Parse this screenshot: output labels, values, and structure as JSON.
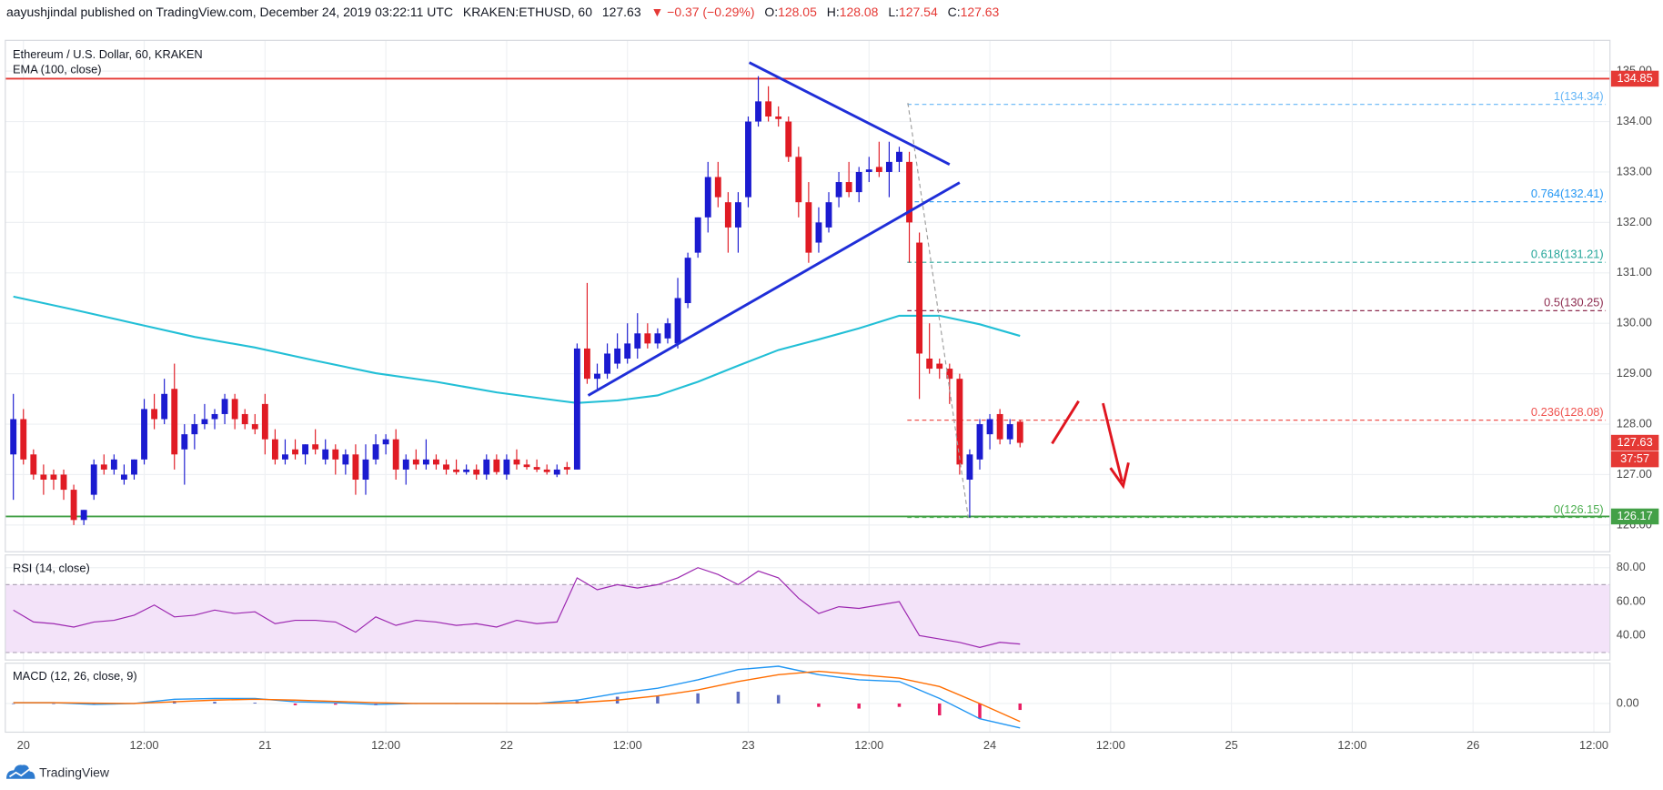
{
  "header": {
    "author": "aayushjindal published on TradingView.com, December 24, 2019 03:22:11 UTC",
    "symbol": "KRAKEN:ETHUSD, 60",
    "last": 127.63,
    "change": "▼ −0.37 (−0.29%)",
    "ohlc": [
      {
        "label": "O:",
        "value": 128.05
      },
      {
        "label": "H:",
        "value": 128.08
      },
      {
        "label": "L:",
        "value": 127.54
      },
      {
        "label": "C:",
        "value": 127.63
      }
    ]
  },
  "footer": {
    "brand": "TradingView"
  },
  "chart_data": [
    {
      "type": "candlestick",
      "title": "Ethereum / U.S. Dollar, 60, KRAKEN",
      "x": [
        -1,
        0,
        1,
        2,
        3,
        4,
        5,
        6,
        7,
        8,
        9,
        10,
        11,
        12,
        13,
        14,
        15,
        16,
        17,
        18,
        19,
        20,
        21,
        22,
        23,
        24,
        25,
        26,
        27,
        28,
        29,
        30,
        31,
        32,
        33,
        34,
        35,
        36,
        37,
        38,
        39,
        40,
        41,
        42,
        43,
        44,
        45,
        46,
        47,
        48,
        49,
        50,
        51,
        52,
        53,
        54,
        55,
        56,
        57,
        58,
        59,
        60,
        61,
        62,
        63,
        64,
        65,
        66,
        67,
        68,
        69,
        70,
        71,
        72,
        73,
        74,
        75,
        76,
        77,
        78,
        79,
        80,
        81,
        82,
        83,
        84,
        85,
        86,
        87,
        88,
        89,
        90,
        91,
        92,
        93,
        94,
        95,
        96,
        97,
        98,
        99
      ],
      "open": [
        127.4,
        128.1,
        127.4,
        127.0,
        127.0,
        127.0,
        126.7,
        126.1,
        126.6,
        127.2,
        127.1,
        126.9,
        127.0,
        127.3,
        128.3,
        128.1,
        128.7,
        127.5,
        127.8,
        128.0,
        128.1,
        128.2,
        128.5,
        128.2,
        128.0,
        128.4,
        127.7,
        127.3,
        127.5,
        127.4,
        127.6,
        127.3,
        127.5,
        127.2,
        127.4,
        126.9,
        127.3,
        127.6,
        127.7,
        127.1,
        127.3,
        127.2,
        127.3,
        127.2,
        127.1,
        127.05,
        127.1,
        127.0,
        127.3,
        127.0,
        127.3,
        127.2,
        127.15,
        127.1,
        127.0,
        127.15,
        127.1,
        129.5,
        128.9,
        129.0,
        129.2,
        129.3,
        129.5,
        129.8,
        129.6,
        129.7,
        129.6,
        130.4,
        131.4,
        132.1,
        132.9,
        132.4,
        131.9,
        132.5,
        134.0,
        134.4,
        134.1,
        134.0,
        133.3,
        132.4,
        131.6,
        131.9,
        132.5,
        132.8,
        132.6,
        133.0,
        133.1,
        133.0,
        133.2,
        133.2,
        131.6,
        129.3,
        129.2,
        129.1,
        128.9,
        126.9,
        127.3,
        127.8,
        128.2,
        127.7,
        128.05
      ],
      "high": [
        128.6,
        128.3,
        127.5,
        127.2,
        127.1,
        127.1,
        126.8,
        126.3,
        127.3,
        127.4,
        127.4,
        127.2,
        127.3,
        128.5,
        128.6,
        128.9,
        129.2,
        128.0,
        128.2,
        128.4,
        128.3,
        128.6,
        128.6,
        128.3,
        128.2,
        128.6,
        127.9,
        127.7,
        127.7,
        127.6,
        127.9,
        127.7,
        127.6,
        127.5,
        127.6,
        127.6,
        127.8,
        127.8,
        127.9,
        127.4,
        127.5,
        127.7,
        127.4,
        127.3,
        127.3,
        127.2,
        127.2,
        127.4,
        127.4,
        127.4,
        127.5,
        127.3,
        127.3,
        127.2,
        127.2,
        127.25,
        129.6,
        130.8,
        129.2,
        129.6,
        129.8,
        130.0,
        130.2,
        130.0,
        129.9,
        130.1,
        130.9,
        131.4,
        132.1,
        133.2,
        133.2,
        132.6,
        132.6,
        134.1,
        134.9,
        134.7,
        134.3,
        134.1,
        133.5,
        132.8,
        132.3,
        132.6,
        133.0,
        133.2,
        133.1,
        133.3,
        133.6,
        133.6,
        133.5,
        133.4,
        131.8,
        130.0,
        129.3,
        129.2,
        129.0,
        127.5,
        128.1,
        128.2,
        128.3,
        128.1,
        128.08
      ],
      "low": [
        126.5,
        127.2,
        126.9,
        126.6,
        126.7,
        126.5,
        126.0,
        126.0,
        126.5,
        127.0,
        127.0,
        126.8,
        126.9,
        127.2,
        127.9,
        128.0,
        127.1,
        126.8,
        127.5,
        127.9,
        127.9,
        128.0,
        127.9,
        127.9,
        127.8,
        127.4,
        127.2,
        127.2,
        127.3,
        127.2,
        127.4,
        127.2,
        127.0,
        127.0,
        126.6,
        126.6,
        127.2,
        127.4,
        126.9,
        126.8,
        127.1,
        127.1,
        127.1,
        127.0,
        127.0,
        127.0,
        126.9,
        126.9,
        127.0,
        126.9,
        127.1,
        127.1,
        127.05,
        127.0,
        126.95,
        127.0,
        127.1,
        128.8,
        128.7,
        128.9,
        129.1,
        129.2,
        129.3,
        129.5,
        129.5,
        129.6,
        129.5,
        130.3,
        131.3,
        131.8,
        132.3,
        131.4,
        131.4,
        132.3,
        133.9,
        134.0,
        133.9,
        133.2,
        132.1,
        131.2,
        131.4,
        131.8,
        132.3,
        132.5,
        132.4,
        132.8,
        132.9,
        132.5,
        133.0,
        131.2,
        128.5,
        129.0,
        128.9,
        128.4,
        127.0,
        126.15,
        127.1,
        127.5,
        127.6,
        127.6,
        127.54
      ],
      "close": [
        128.1,
        127.3,
        127.0,
        126.9,
        126.9,
        126.7,
        126.1,
        126.3,
        127.2,
        127.1,
        127.3,
        127.0,
        127.3,
        128.3,
        128.1,
        128.6,
        127.4,
        127.8,
        128.0,
        128.1,
        128.2,
        128.5,
        128.1,
        128.0,
        127.9,
        127.7,
        127.3,
        127.4,
        127.4,
        127.6,
        127.5,
        127.5,
        127.3,
        127.4,
        126.9,
        127.3,
        127.6,
        127.7,
        127.1,
        127.3,
        127.2,
        127.3,
        127.2,
        127.1,
        127.05,
        127.1,
        127.0,
        127.3,
        127.05,
        127.3,
        127.2,
        127.15,
        127.1,
        127.05,
        127.1,
        127.1,
        129.5,
        128.9,
        129.0,
        129.4,
        129.5,
        129.6,
        129.8,
        129.6,
        129.8,
        130.0,
        130.5,
        131.3,
        132.1,
        132.9,
        132.5,
        131.9,
        132.4,
        134.0,
        134.4,
        134.1,
        134.05,
        133.3,
        132.4,
        131.4,
        132.0,
        132.4,
        132.8,
        132.6,
        133.0,
        133.05,
        133.0,
        133.2,
        133.4,
        132.0,
        129.4,
        129.1,
        129.1,
        128.9,
        127.2,
        127.4,
        128.0,
        128.1,
        127.7,
        128.0,
        127.63
      ],
      "up_color": "#1b1bd0",
      "down_color": "#e01b24",
      "xlim": [
        -1.8,
        157.6
      ],
      "xticks": [
        {
          "value": 0,
          "label": "20"
        },
        {
          "value": 12,
          "label": "12:00"
        },
        {
          "value": 24,
          "label": "21"
        },
        {
          "value": 36,
          "label": "12:00"
        },
        {
          "value": 48,
          "label": "22"
        },
        {
          "value": 60,
          "label": "12:00"
        },
        {
          "value": 72,
          "label": "23"
        },
        {
          "value": 84,
          "label": "12:00"
        },
        {
          "value": 96,
          "label": "24"
        },
        {
          "value": 108,
          "label": "12:00"
        },
        {
          "value": 120,
          "label": "25"
        },
        {
          "value": 132,
          "label": "12:00"
        },
        {
          "value": 144,
          "label": "26"
        },
        {
          "value": 156,
          "label": "12:00"
        }
      ],
      "ylim": [
        125.47,
        135.61
      ],
      "yticks": [
        {
          "value": 126,
          "label": "126.00"
        },
        {
          "value": 127,
          "label": "127.00"
        },
        {
          "value": 128,
          "label": "128.00"
        },
        {
          "value": 129,
          "label": "129.00"
        },
        {
          "value": 130,
          "label": "130.00"
        },
        {
          "value": 131,
          "label": "131.00"
        },
        {
          "value": 132,
          "label": "132.00"
        },
        {
          "value": 133,
          "label": "133.00"
        },
        {
          "value": 134,
          "label": "134.00"
        },
        {
          "value": 135,
          "label": "135.00"
        }
      ],
      "grid": true,
      "overlays": [
        {
          "type": "line",
          "name": "EMA (100, close)",
          "color": "#22bfd6",
          "x": [
            -1,
            5,
            11,
            17,
            23,
            29,
            35,
            41,
            47,
            53,
            55,
            59,
            63,
            67,
            71,
            75,
            79,
            83,
            87,
            91,
            95,
            99
          ],
          "values": [
            130.53,
            130.27,
            130.0,
            129.73,
            129.52,
            129.26,
            129.01,
            128.84,
            128.63,
            128.47,
            128.42,
            128.47,
            128.57,
            128.84,
            129.16,
            129.47,
            129.68,
            129.9,
            130.15,
            130.15,
            129.98,
            129.75
          ]
        }
      ],
      "trendlines": [
        {
          "color": "#1f2ed8",
          "x": [
            72.1,
            92.0
          ],
          "values": [
            135.17,
            133.15
          ]
        },
        {
          "color": "#1f2ed8",
          "x": [
            56.1,
            93.0
          ],
          "values": [
            128.57,
            132.79
          ]
        }
      ],
      "hlines": [
        {
          "price": 134.85,
          "color": "#e53935"
        },
        {
          "price": 126.17,
          "color": "#43a047"
        }
      ],
      "fib": {
        "x": 87.8,
        "levels": [
          {
            "price": 134.34,
            "label": "1(134.34)",
            "color": "#64b5f6"
          },
          {
            "price": 132.41,
            "label": "0.764(132.41)",
            "color": "#2196f3"
          },
          {
            "price": 131.21,
            "label": "0.618(131.21)",
            "color": "#26a69a"
          },
          {
            "price": 130.25,
            "label": "0.5(130.25)",
            "color": "#8d2b4f"
          },
          {
            "price": 128.08,
            "label": "0.236(128.08)",
            "color": "#ef5350"
          },
          {
            "price": 126.15,
            "label": "0(126.15)",
            "color": "#4caf50"
          }
        ]
      },
      "last_price": 127.63,
      "last_color": "#e53935",
      "countdown": "37:57"
    },
    {
      "type": "line",
      "title": "RSI (14, close)",
      "color": "#9c27b0",
      "x": [
        -1,
        1,
        3,
        5,
        7,
        9,
        11,
        13,
        15,
        17,
        19,
        21,
        23,
        25,
        27,
        29,
        31,
        33,
        35,
        37,
        39,
        41,
        43,
        45,
        47,
        49,
        51,
        53,
        55,
        57,
        59,
        61,
        63,
        65,
        67,
        69,
        71,
        73,
        75,
        77,
        79,
        81,
        83,
        85,
        87,
        89,
        91,
        93,
        95,
        97,
        99
      ],
      "values": [
        55,
        48,
        47,
        45,
        48,
        49,
        52,
        58,
        51,
        52,
        55,
        53,
        54,
        47,
        49,
        49,
        48,
        42,
        51,
        46,
        49,
        48,
        46,
        47,
        45,
        49,
        47,
        48,
        74,
        67,
        70,
        68,
        70,
        74,
        80,
        76,
        70,
        78,
        74,
        62,
        53,
        57,
        56,
        58,
        60,
        40,
        38,
        36,
        33,
        36,
        35
      ],
      "band": [
        30,
        70
      ],
      "band_color": "#f3e3f9",
      "ylim": [
        25.6,
        87.5
      ],
      "yticks": [
        {
          "value": 40,
          "label": "40.00"
        },
        {
          "value": 60,
          "label": "60.00"
        },
        {
          "value": 80,
          "label": "80.00"
        }
      ]
    },
    {
      "type": "macd",
      "title": "MACD (12, 26, close, 9)",
      "x": [
        -1,
        3,
        7,
        11,
        15,
        19,
        23,
        27,
        31,
        35,
        39,
        43,
        47,
        51,
        55,
        59,
        63,
        67,
        71,
        75,
        79,
        83,
        87,
        91,
        95,
        99
      ],
      "series": [
        {
          "color": "#2196f3",
          "values": [
            0.05,
            0.05,
            -0.05,
            0.0,
            0.25,
            0.3,
            0.3,
            0.1,
            0.05,
            -0.05,
            0.0,
            0.0,
            0.0,
            0.0,
            0.2,
            0.6,
            0.9,
            1.4,
            2.0,
            2.2,
            1.7,
            1.4,
            1.3,
            0.3,
            -0.9,
            -1.44
          ]
        },
        {
          "color": "#ff6d00",
          "values": [
            0.05,
            0.05,
            0.02,
            0.0,
            0.1,
            0.2,
            0.25,
            0.2,
            0.12,
            0.05,
            0.0,
            0.0,
            0.0,
            0.0,
            0.05,
            0.2,
            0.45,
            0.8,
            1.3,
            1.7,
            1.9,
            1.7,
            1.5,
            1.0,
            0.0,
            -1.06
          ]
        }
      ],
      "histogram": {
        "values": [
          0,
          0,
          -0.07,
          0,
          0.15,
          0.1,
          0.05,
          -0.1,
          -0.07,
          -0.1,
          0,
          0,
          0,
          0,
          0.15,
          0.4,
          0.45,
          0.6,
          0.7,
          0.5,
          -0.2,
          -0.3,
          -0.2,
          -0.7,
          -0.9,
          -0.38
        ],
        "positive_color": "#5c6bc0",
        "negative_color": "#e91e63"
      },
      "ylim": [
        -1.69,
        2.38
      ],
      "yticks": [
        {
          "value": 0,
          "label": "0.00"
        }
      ]
    }
  ]
}
